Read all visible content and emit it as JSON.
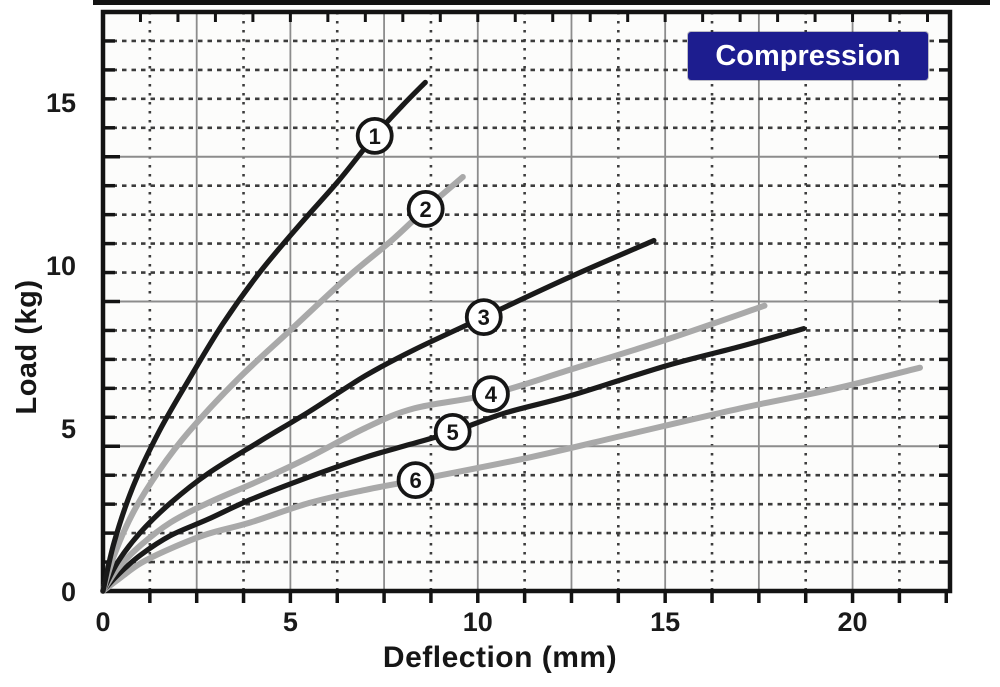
{
  "badge": {
    "bg": "#1d1d8f",
    "fg": "#ffffff"
  },
  "chart_data": {
    "type": "line",
    "title": "Compression",
    "xlabel": "Deflection (mm)",
    "ylabel": "Load (kg)",
    "xlim": [
      0,
      22.6
    ],
    "ylim": [
      0,
      17.76
    ],
    "xticks": [
      0,
      5,
      10,
      15,
      20
    ],
    "yticks": [
      0,
      5,
      10,
      15
    ],
    "grid": {
      "on": true,
      "x_minor_step": 1.25,
      "x_major_step": 2.5,
      "x_minor_max": 21.25,
      "x_major_max": 20,
      "y_divisions": 20,
      "y_major_every": 5,
      "top_tick_step": 1.0,
      "bottom_tick_step": 1.25
    },
    "legend_position": "none",
    "colors": {
      "black_series": "#1a1a1a",
      "gray_series": "#a9a9a9",
      "grid_dotted": "#3c3c3c",
      "grid_solid": "#8c8c8c",
      "frame": "#131313",
      "plot_bg": "#fcfcfb",
      "tick_label": "#1a1a1a"
    },
    "series": [
      {
        "name": "1",
        "color_key": "black",
        "marker": {
          "x": 7.25,
          "y": 13.96
        },
        "points": [
          [
            0,
            0
          ],
          [
            0.3,
            1.5
          ],
          [
            0.8,
            3.2
          ],
          [
            1.5,
            4.9
          ],
          [
            2.3,
            6.5
          ],
          [
            3.2,
            8.2
          ],
          [
            4.2,
            9.8
          ],
          [
            5.3,
            11.3
          ],
          [
            6.3,
            12.6
          ],
          [
            7.25,
            13.96
          ],
          [
            8.0,
            14.9
          ],
          [
            8.6,
            15.6
          ]
        ]
      },
      {
        "name": "2",
        "color_key": "gray",
        "marker": {
          "x": 8.61,
          "y": 11.72
        },
        "points": [
          [
            0,
            0
          ],
          [
            0.3,
            1.1
          ],
          [
            0.8,
            2.4
          ],
          [
            1.5,
            3.7
          ],
          [
            2.3,
            4.9
          ],
          [
            3.6,
            6.5
          ],
          [
            5.0,
            8.0
          ],
          [
            6.5,
            9.6
          ],
          [
            7.7,
            10.75
          ],
          [
            8.61,
            11.72
          ],
          [
            9.6,
            12.7
          ]
        ]
      },
      {
        "name": "3",
        "color_key": "black",
        "marker": {
          "x": 10.16,
          "y": 8.4
        },
        "points": [
          [
            0,
            0
          ],
          [
            0.4,
            0.9
          ],
          [
            1.0,
            1.8
          ],
          [
            1.8,
            2.7
          ],
          [
            2.8,
            3.6
          ],
          [
            4.2,
            4.6
          ],
          [
            5.5,
            5.5
          ],
          [
            7.0,
            6.6
          ],
          [
            8.3,
            7.4
          ],
          [
            10.16,
            8.4
          ],
          [
            12.4,
            9.6
          ],
          [
            14.7,
            10.75
          ]
        ]
      },
      {
        "name": "4",
        "color_key": "gray",
        "marker": {
          "x": 10.35,
          "y": 6.04
        },
        "points": [
          [
            0,
            0
          ],
          [
            0.4,
            0.7
          ],
          [
            1.0,
            1.4
          ],
          [
            1.8,
            2.1
          ],
          [
            2.8,
            2.7
          ],
          [
            4.2,
            3.4
          ],
          [
            5.5,
            4.1
          ],
          [
            7.0,
            5.0
          ],
          [
            8.3,
            5.6
          ],
          [
            10.35,
            6.04
          ],
          [
            12.5,
            6.8
          ],
          [
            15.0,
            7.7
          ],
          [
            17.65,
            8.75
          ]
        ]
      },
      {
        "name": "5",
        "color_key": "black",
        "marker": {
          "x": 9.33,
          "y": 4.88
        },
        "points": [
          [
            0,
            0
          ],
          [
            0.4,
            0.5
          ],
          [
            1.0,
            1.1
          ],
          [
            1.8,
            1.7
          ],
          [
            2.8,
            2.2
          ],
          [
            3.93,
            2.8
          ],
          [
            5.5,
            3.5
          ],
          [
            7.0,
            4.1
          ],
          [
            8.2,
            4.5
          ],
          [
            9.33,
            4.88
          ],
          [
            10.7,
            5.45
          ],
          [
            12.5,
            6.0
          ],
          [
            15.0,
            6.9
          ],
          [
            17.0,
            7.5
          ],
          [
            18.7,
            8.05
          ]
        ]
      },
      {
        "name": "6",
        "color_key": "gray",
        "marker": {
          "x": 8.34,
          "y": 3.4
        },
        "points": [
          [
            0,
            0
          ],
          [
            0.4,
            0.35
          ],
          [
            1.0,
            0.85
          ],
          [
            1.8,
            1.3
          ],
          [
            2.8,
            1.75
          ],
          [
            3.93,
            2.1
          ],
          [
            5.5,
            2.7
          ],
          [
            7.0,
            3.1
          ],
          [
            8.34,
            3.4
          ],
          [
            11.4,
            4.1
          ],
          [
            14.0,
            4.8
          ],
          [
            17.0,
            5.6
          ],
          [
            19.5,
            6.2
          ],
          [
            21.8,
            6.85
          ]
        ]
      }
    ]
  }
}
